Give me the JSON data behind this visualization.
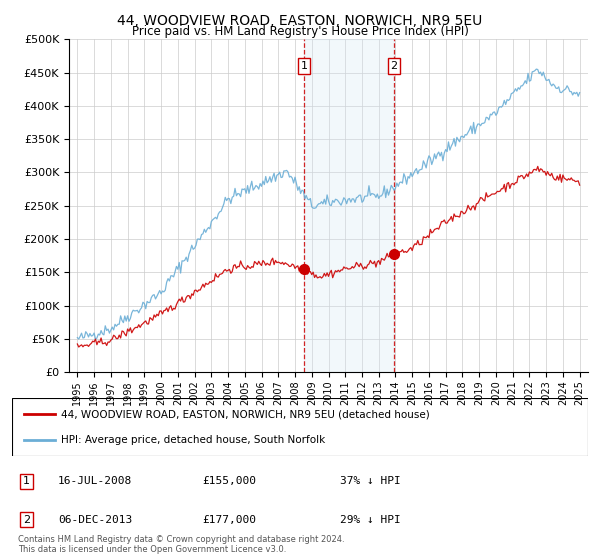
{
  "title": "44, WOODVIEW ROAD, EASTON, NORWICH, NR9 5EU",
  "subtitle": "Price paid vs. HM Land Registry's House Price Index (HPI)",
  "legend_line1": "44, WOODVIEW ROAD, EASTON, NORWICH, NR9 5EU (detached house)",
  "legend_line2": "HPI: Average price, detached house, South Norfolk",
  "sale1_date": "16-JUL-2008",
  "sale1_price": "£155,000",
  "sale1_pct": "37% ↓ HPI",
  "sale2_date": "06-DEC-2013",
  "sale2_price": "£177,000",
  "sale2_pct": "29% ↓ HPI",
  "footnote": "Contains HM Land Registry data © Crown copyright and database right 2024.\nThis data is licensed under the Open Government Licence v3.0.",
  "hpi_color": "#6baed6",
  "sale_color": "#cc0000",
  "marker_border_color": "#cc0000",
  "sale1_x": 2008.54,
  "sale1_y": 155000,
  "sale2_x": 2013.92,
  "sale2_y": 177000,
  "ylim": [
    0,
    500000
  ],
  "xlim": [
    1994.5,
    2025.5
  ],
  "shaded_region_color": "#d6e8f5",
  "sale1_vline_x": 2008.54,
  "sale2_vline_x": 2013.92
}
